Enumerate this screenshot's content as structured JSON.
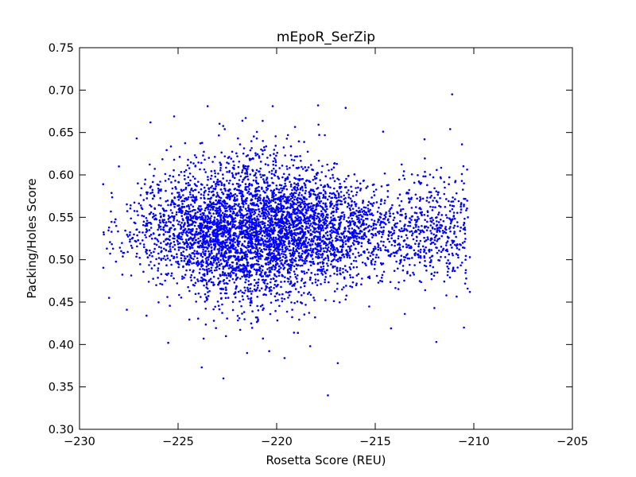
{
  "chart_data": {
    "type": "scatter",
    "title": "mEpoR_SerZip",
    "xlabel": "Rosetta Score (REU)",
    "ylabel": "Packing/Holes Score",
    "xlim": [
      -230,
      -205
    ],
    "ylim": [
      0.3,
      0.75
    ],
    "xticks": [
      -230,
      -225,
      -220,
      -215,
      -210,
      -205
    ],
    "xtick_labels": [
      "−230",
      "−225",
      "−220",
      "−215",
      "−210",
      "−205"
    ],
    "yticks": [
      0.3,
      0.35,
      0.4,
      0.45,
      0.5,
      0.55,
      0.6,
      0.65,
      0.7,
      0.75
    ],
    "ytick_labels": [
      "0.30",
      "0.35",
      "0.40",
      "0.45",
      "0.50",
      "0.55",
      "0.60",
      "0.65",
      "0.70",
      "0.75"
    ],
    "grid": false,
    "legend": "none",
    "marker_color": "#0000ff",
    "series": [
      {
        "points": [
          [
            -211.1,
            0.695
          ],
          [
            -217.4,
            0.34
          ],
          [
            -222.7,
            0.36
          ],
          [
            -223.8,
            0.373
          ],
          [
            -220.2,
            0.681
          ],
          [
            -217.9,
            0.682
          ],
          [
            -216.5,
            0.679
          ],
          [
            -223.5,
            0.681
          ],
          [
            -225.2,
            0.669
          ],
          [
            -210.5,
            0.42
          ],
          [
            -211.9,
            0.403
          ],
          [
            -216.9,
            0.378
          ],
          [
            -228.8,
            0.589
          ],
          [
            -228.5,
            0.455
          ],
          [
            -227.6,
            0.441
          ],
          [
            -210.2,
            0.462
          ],
          [
            -210.2,
            0.503
          ],
          [
            -210.3,
            0.55
          ],
          [
            -210.5,
            0.59
          ],
          [
            -211.2,
            0.654
          ],
          [
            -210.6,
            0.636
          ],
          [
            -212.5,
            0.642
          ],
          [
            -214.6,
            0.651
          ],
          [
            -226.4,
            0.662
          ],
          [
            -227.1,
            0.643
          ],
          [
            -228.5,
            0.538
          ],
          [
            -228.3,
            0.513
          ],
          [
            -228.0,
            0.61
          ],
          [
            -225.5,
            0.402
          ],
          [
            -221.5,
            0.39
          ],
          [
            -219.6,
            0.384
          ],
          [
            -218.3,
            0.398
          ],
          [
            -214.2,
            0.419
          ],
          [
            -213.5,
            0.436
          ],
          [
            -212.0,
            0.443
          ],
          [
            -226.6,
            0.434
          ]
        ]
      }
    ],
    "cloud": {
      "count": 5200,
      "core_x": -221.5,
      "core_x_sd": 2.8,
      "tail_x_max": -210.3,
      "core_y": 0.535,
      "core_y_sd": 0.045
    }
  }
}
